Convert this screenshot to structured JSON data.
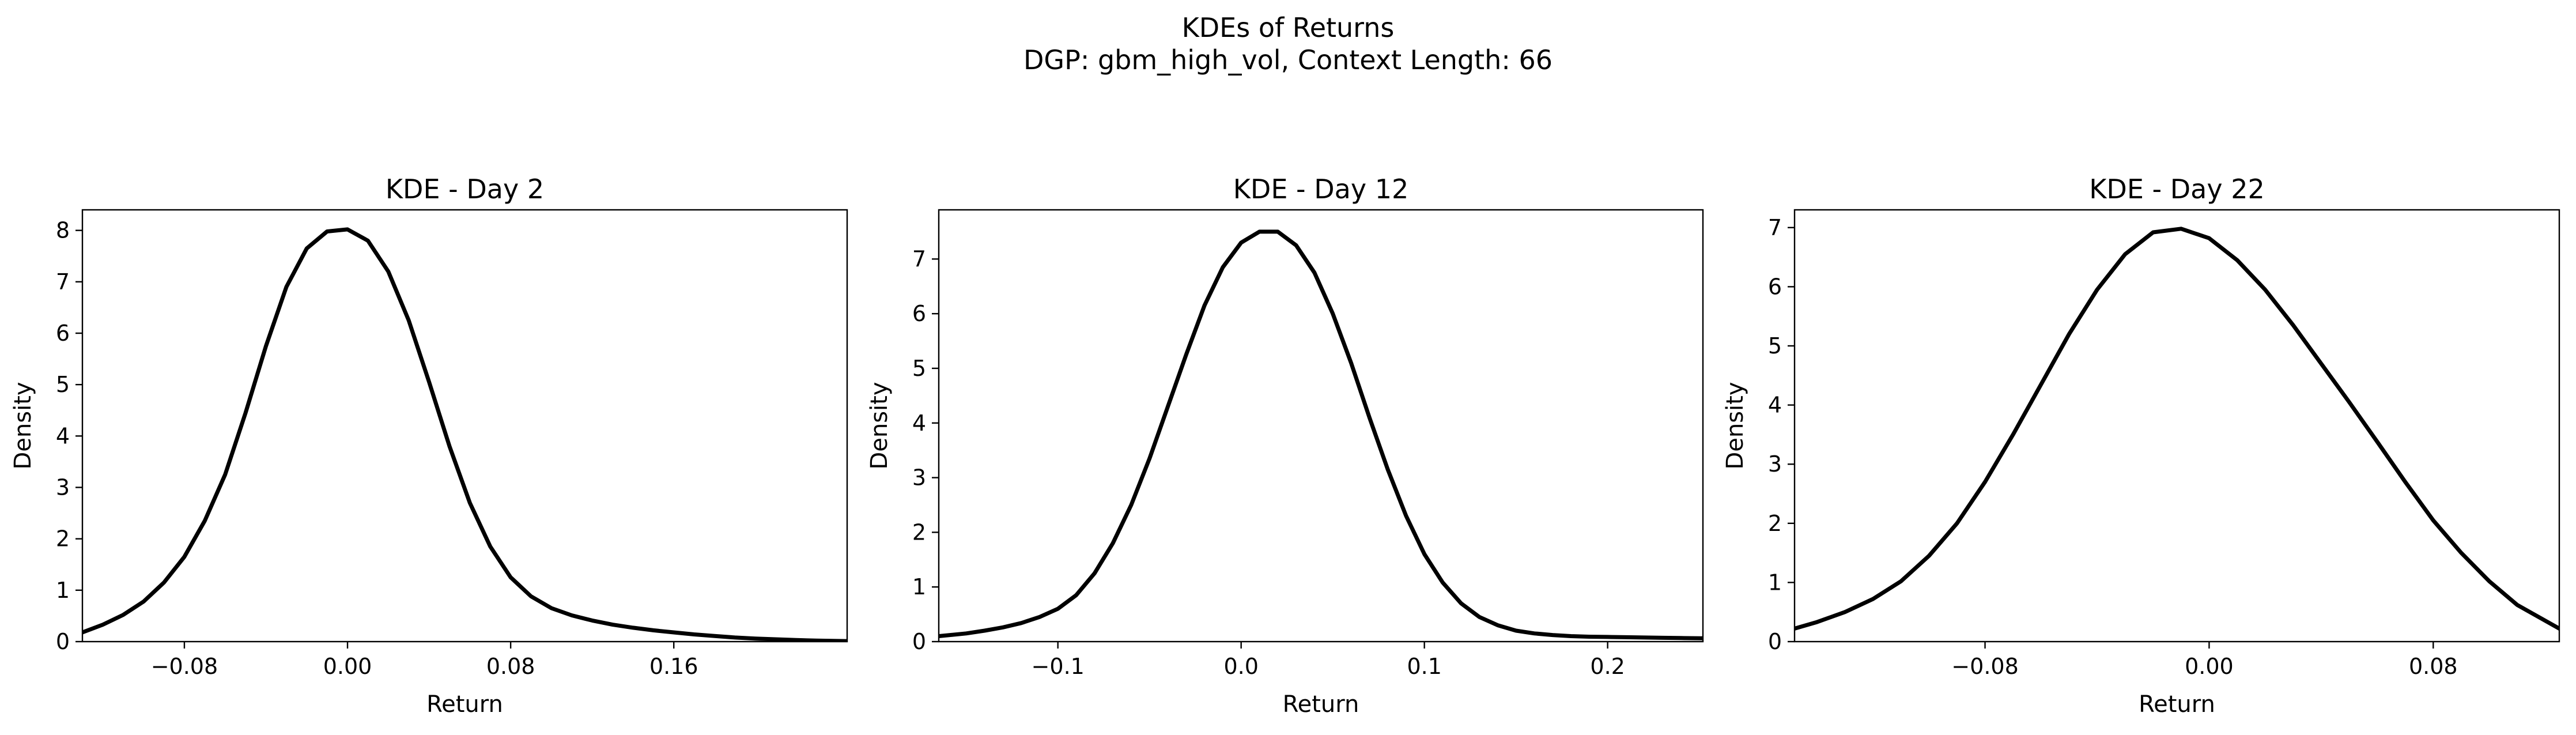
{
  "figure": {
    "title": "KDEs of Returns",
    "subtitle": "DGP: gbm_high_vol, Context Length: 66"
  },
  "chart_data": [
    {
      "type": "line",
      "title": "KDE - Day 2",
      "xlabel": "Return",
      "ylabel": "Density",
      "xlim": [
        -0.13,
        0.245
      ],
      "ylim": [
        0,
        8.4
      ],
      "xticks": [
        -0.08,
        0.0,
        0.08,
        0.16
      ],
      "xtick_labels": [
        "−0.08",
        "0.00",
        "0.08",
        "0.16"
      ],
      "yticks": [
        0,
        1,
        2,
        3,
        4,
        5,
        6,
        7,
        8
      ],
      "ytick_labels": [
        "0",
        "1",
        "2",
        "3",
        "4",
        "5",
        "6",
        "7",
        "8"
      ],
      "line_color": "#000000",
      "grid": false,
      "x": [
        -0.13,
        -0.12,
        -0.11,
        -0.1,
        -0.09,
        -0.08,
        -0.07,
        -0.06,
        -0.05,
        -0.04,
        -0.03,
        -0.02,
        -0.01,
        0.0,
        0.01,
        0.02,
        0.03,
        0.04,
        0.05,
        0.06,
        0.07,
        0.08,
        0.09,
        0.1,
        0.11,
        0.12,
        0.13,
        0.14,
        0.15,
        0.16,
        0.17,
        0.18,
        0.19,
        0.2,
        0.21,
        0.22,
        0.23,
        0.245
      ],
      "y": [
        0.18,
        0.33,
        0.52,
        0.78,
        1.15,
        1.65,
        2.35,
        3.25,
        4.45,
        5.75,
        6.9,
        7.65,
        7.98,
        8.02,
        7.8,
        7.2,
        6.25,
        5.05,
        3.8,
        2.7,
        1.85,
        1.25,
        0.88,
        0.65,
        0.51,
        0.41,
        0.33,
        0.27,
        0.22,
        0.18,
        0.14,
        0.11,
        0.08,
        0.06,
        0.045,
        0.03,
        0.02,
        0.01
      ]
    },
    {
      "type": "line",
      "title": "KDE - Day 12",
      "xlabel": "Return",
      "ylabel": "Density",
      "xlim": [
        -0.165,
        0.252
      ],
      "ylim": [
        0,
        7.9
      ],
      "xticks": [
        -0.1,
        0.0,
        0.1,
        0.2
      ],
      "xtick_labels": [
        "−0.1",
        "0.0",
        "0.1",
        "0.2"
      ],
      "yticks": [
        0,
        1,
        2,
        3,
        4,
        5,
        6,
        7
      ],
      "ytick_labels": [
        "0",
        "1",
        "2",
        "3",
        "4",
        "5",
        "6",
        "7"
      ],
      "line_color": "#000000",
      "grid": false,
      "x": [
        -0.165,
        -0.15,
        -0.14,
        -0.13,
        -0.12,
        -0.11,
        -0.1,
        -0.09,
        -0.08,
        -0.07,
        -0.06,
        -0.05,
        -0.04,
        -0.03,
        -0.02,
        -0.01,
        0.0,
        0.01,
        0.02,
        0.03,
        0.04,
        0.05,
        0.06,
        0.07,
        0.08,
        0.09,
        0.1,
        0.11,
        0.12,
        0.13,
        0.14,
        0.15,
        0.16,
        0.17,
        0.18,
        0.19,
        0.2,
        0.21,
        0.22,
        0.23,
        0.24,
        0.252
      ],
      "y": [
        0.1,
        0.15,
        0.2,
        0.26,
        0.34,
        0.45,
        0.6,
        0.85,
        1.25,
        1.8,
        2.5,
        3.35,
        4.3,
        5.25,
        6.15,
        6.85,
        7.3,
        7.5,
        7.5,
        7.25,
        6.75,
        6.0,
        5.1,
        4.1,
        3.15,
        2.3,
        1.6,
        1.08,
        0.7,
        0.45,
        0.3,
        0.2,
        0.15,
        0.12,
        0.1,
        0.09,
        0.085,
        0.08,
        0.075,
        0.07,
        0.065,
        0.06
      ]
    },
    {
      "type": "line",
      "title": "KDE - Day 22",
      "xlabel": "Return",
      "ylabel": "Density",
      "xlim": [
        -0.148,
        0.125
      ],
      "ylim": [
        0,
        7.3
      ],
      "xticks": [
        -0.08,
        0.0,
        0.08
      ],
      "xtick_labels": [
        "−0.08",
        "0.00",
        "0.08"
      ],
      "yticks": [
        0,
        1,
        2,
        3,
        4,
        5,
        6,
        7
      ],
      "ytick_labels": [
        "0",
        "1",
        "2",
        "3",
        "4",
        "5",
        "6",
        "7"
      ],
      "line_color": "#000000",
      "grid": false,
      "x": [
        -0.148,
        -0.14,
        -0.13,
        -0.12,
        -0.11,
        -0.1,
        -0.09,
        -0.08,
        -0.07,
        -0.06,
        -0.05,
        -0.04,
        -0.03,
        -0.02,
        -0.01,
        0.0,
        0.01,
        0.02,
        0.03,
        0.04,
        0.05,
        0.06,
        0.07,
        0.08,
        0.09,
        0.1,
        0.11,
        0.125
      ],
      "y": [
        0.22,
        0.33,
        0.5,
        0.72,
        1.02,
        1.45,
        2.0,
        2.7,
        3.5,
        4.35,
        5.2,
        5.95,
        6.55,
        6.92,
        6.98,
        6.82,
        6.45,
        5.95,
        5.35,
        4.7,
        4.05,
        3.38,
        2.7,
        2.05,
        1.5,
        1.02,
        0.62,
        0.22
      ]
    }
  ]
}
